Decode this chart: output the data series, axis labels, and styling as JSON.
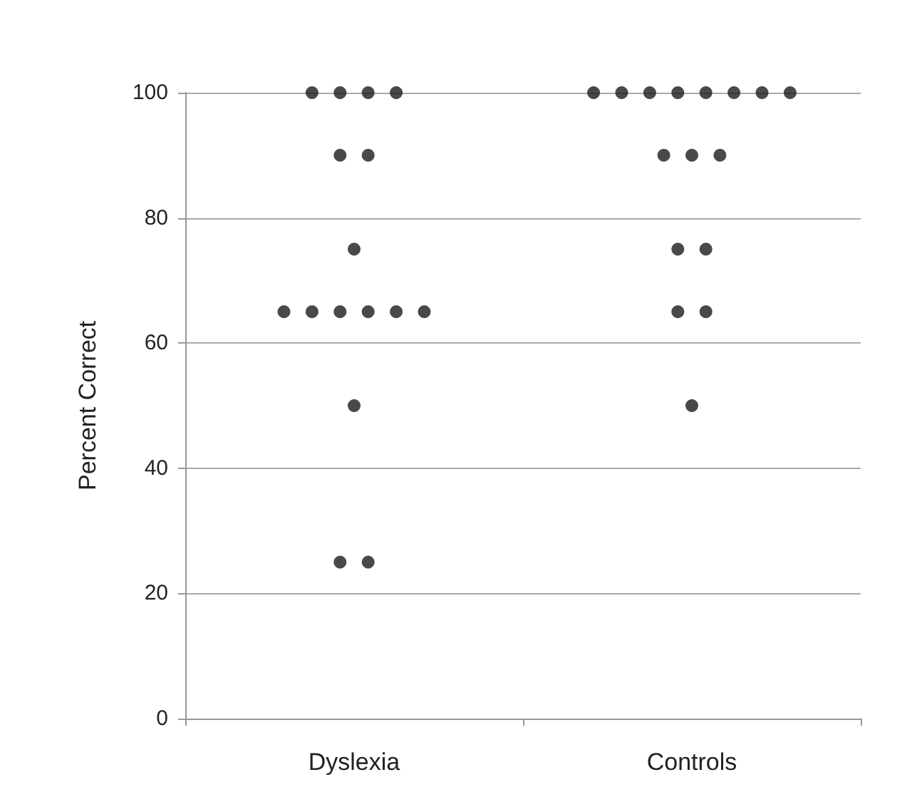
{
  "chart_data": {
    "type": "scatter",
    "ylabel": "Percent Correct",
    "categories": [
      "Dyslexia",
      "Controls"
    ],
    "series": [
      {
        "color": "#1c1c1c",
        "x": [
          "Dyslexia",
          "Dyslexia",
          "Dyslexia",
          "Dyslexia",
          "Dyslexia",
          "Dyslexia",
          "Dyslexia",
          "Dyslexia",
          "Dyslexia",
          "Dyslexia",
          "Dyslexia",
          "Dyslexia",
          "Dyslexia",
          "Dyslexia",
          "Dyslexia",
          "Dyslexia"
        ],
        "values": [
          100,
          100,
          100,
          100,
          90,
          90,
          75,
          65,
          65,
          65,
          65,
          65,
          65,
          50,
          25,
          25
        ]
      },
      {
        "color": "#1c1c1c",
        "x": [
          "Controls",
          "Controls",
          "Controls",
          "Controls",
          "Controls",
          "Controls",
          "Controls",
          "Controls",
          "Controls",
          "Controls",
          "Controls",
          "Controls",
          "Controls",
          "Controls",
          "Controls",
          "Controls"
        ],
        "values": [
          100,
          100,
          100,
          100,
          100,
          100,
          100,
          100,
          90,
          90,
          90,
          75,
          75,
          65,
          65,
          50
        ]
      }
    ],
    "ylim": [
      0,
      100
    ],
    "yticks": [
      0,
      20,
      40,
      60,
      80,
      100
    ],
    "grid": "y",
    "marker": "circle"
  }
}
